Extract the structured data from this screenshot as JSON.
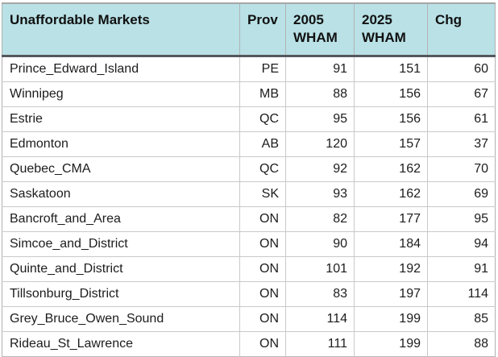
{
  "chart_data": {
    "type": "table",
    "title": "Unaffordable Markets",
    "columns": [
      {
        "label": "Unaffordable Markets"
      },
      {
        "label": "Prov"
      },
      {
        "label": "2005 WHAM"
      },
      {
        "label": "2025 WHAM"
      },
      {
        "label": "Chg"
      }
    ],
    "rows": [
      {
        "market": "Prince_Edward_Island",
        "prov": "PE",
        "wham_2005": 91,
        "wham_2025": 151,
        "chg": 60
      },
      {
        "market": "Winnipeg",
        "prov": "MB",
        "wham_2005": 88,
        "wham_2025": 156,
        "chg": 67
      },
      {
        "market": "Estrie",
        "prov": "QC",
        "wham_2005": 95,
        "wham_2025": 156,
        "chg": 61
      },
      {
        "market": "Edmonton",
        "prov": "AB",
        "wham_2005": 120,
        "wham_2025": 157,
        "chg": 37
      },
      {
        "market": "Quebec_CMA",
        "prov": "QC",
        "wham_2005": 92,
        "wham_2025": 162,
        "chg": 70
      },
      {
        "market": "Saskatoon",
        "prov": "SK",
        "wham_2005": 93,
        "wham_2025": 162,
        "chg": 69
      },
      {
        "market": "Bancroft_and_Area",
        "prov": "ON",
        "wham_2005": 82,
        "wham_2025": 177,
        "chg": 95
      },
      {
        "market": "Simcoe_and_District",
        "prov": "ON",
        "wham_2005": 90,
        "wham_2025": 184,
        "chg": 94
      },
      {
        "market": "Quinte_and_District",
        "prov": "ON",
        "wham_2005": 101,
        "wham_2025": 192,
        "chg": 91
      },
      {
        "market": "Tillsonburg_District",
        "prov": "ON",
        "wham_2005": 83,
        "wham_2025": 197,
        "chg": 114
      },
      {
        "market": "Grey_Bruce_Owen_Sound",
        "prov": "ON",
        "wham_2005": 114,
        "wham_2025": 199,
        "chg": 85
      },
      {
        "market": "Rideau_St_Lawrence",
        "prov": "ON",
        "wham_2005": 111,
        "wham_2025": 199,
        "chg": 88
      }
    ]
  },
  "colors": {
    "header_bg": "#b9e1e6",
    "header_rule": "#55585c",
    "grid_line": "#c9c9c9",
    "outer_border": "#b0b0b0",
    "text": "#1c1c1c"
  }
}
